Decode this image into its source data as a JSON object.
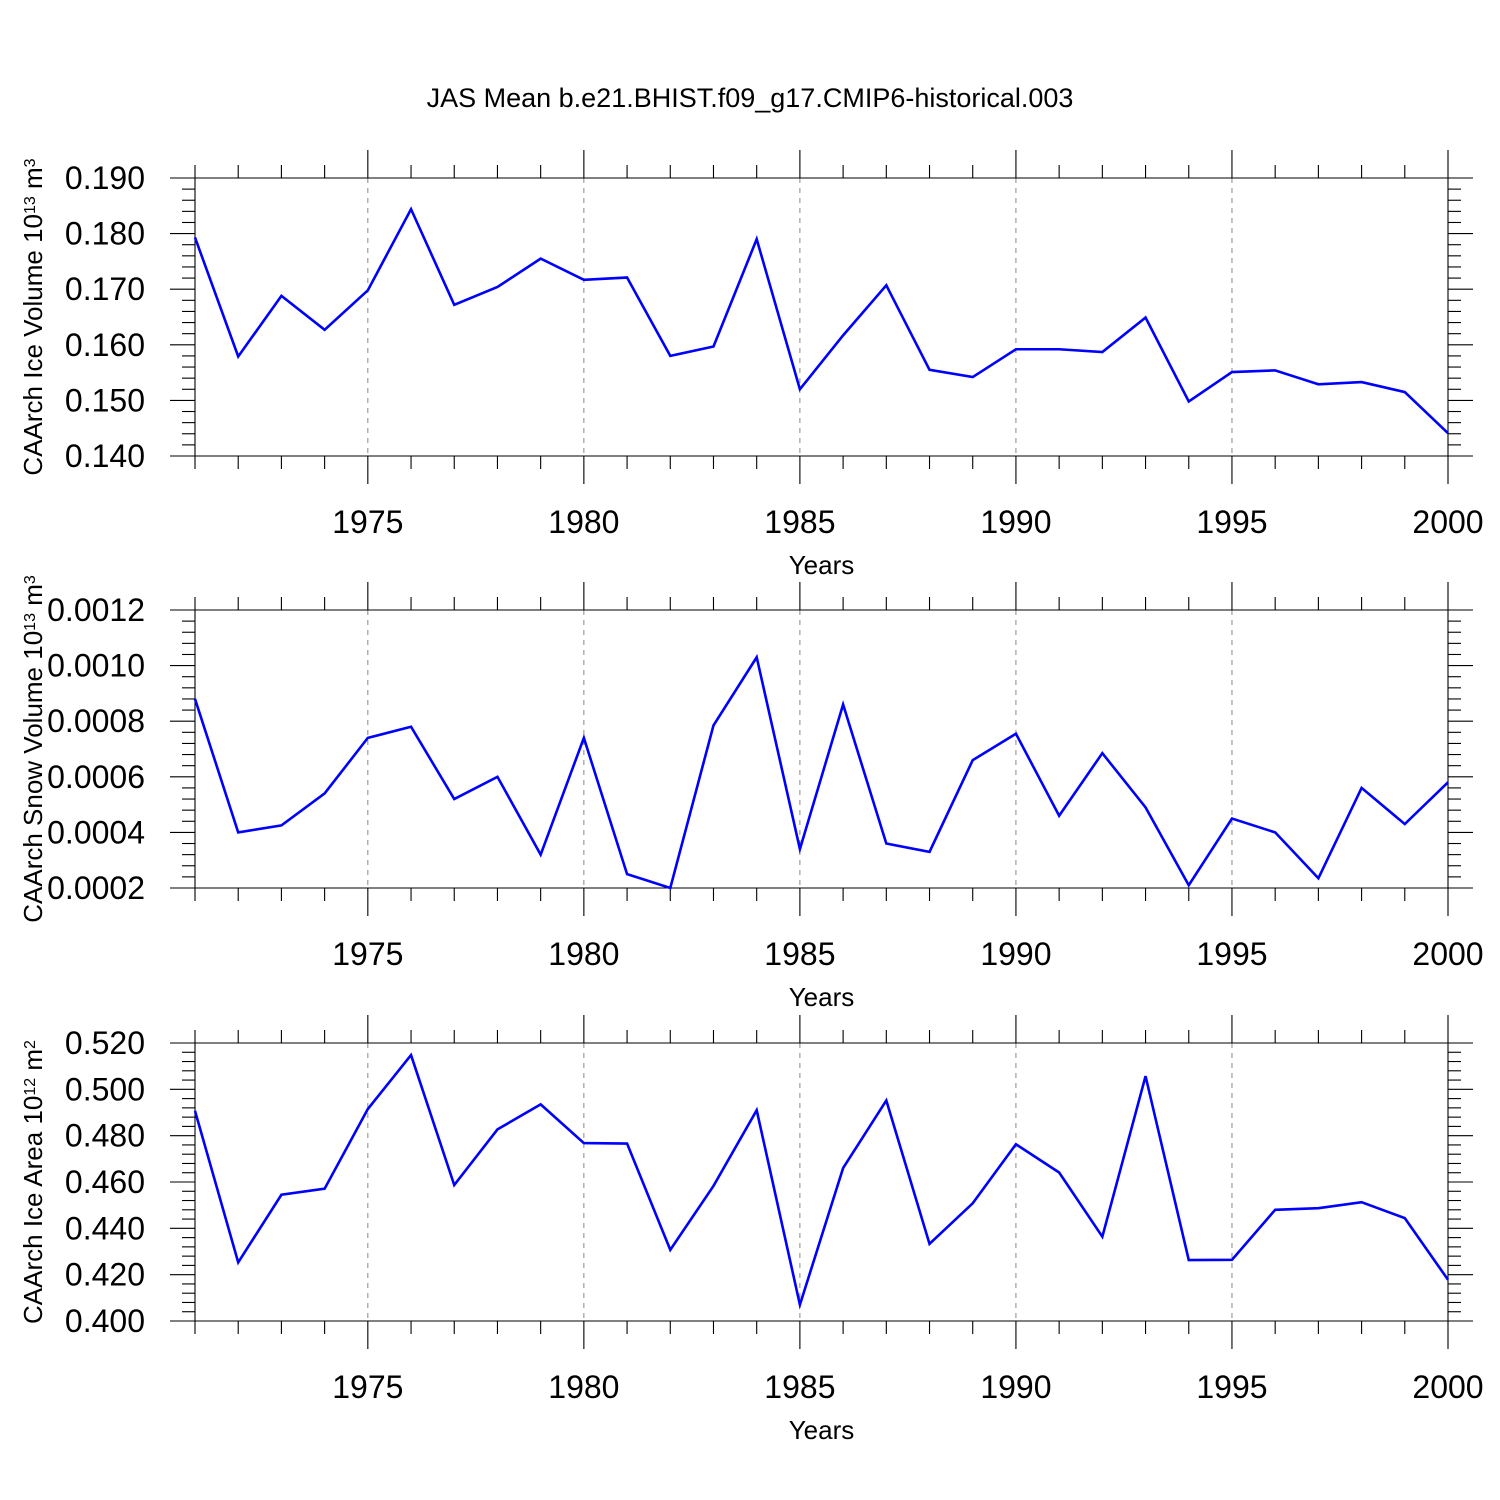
{
  "title": "JAS Mean b.e21.BHIST.f09_g17.CMIP6-historical.003",
  "colors": {
    "series": "#0000ff",
    "grid": "#888888",
    "axes": "#000000"
  },
  "chart_data": [
    {
      "type": "line",
      "ylabel": "CAArch Ice Volume 10",
      "ylabel_exp": "13",
      "ylabel_unit": " m",
      "ylabel_unit_exp": "3",
      "xlabel": "Years",
      "xlim": [
        1971,
        2000
      ],
      "ylim": [
        0.14,
        0.19
      ],
      "yticks": [
        0.14,
        0.15,
        0.16,
        0.17,
        0.18,
        0.19
      ],
      "ytick_labels": [
        "0.140",
        "0.150",
        "0.160",
        "0.170",
        "0.180",
        "0.190"
      ],
      "xticks": [
        1975,
        1980,
        1985,
        1990,
        1995,
        2000
      ],
      "xtick_labels": [
        "1975",
        "1980",
        "1985",
        "1990",
        "1995",
        "2000"
      ],
      "grid": "x dashed",
      "x": [
        1971,
        1972,
        1973,
        1974,
        1975,
        1976,
        1977,
        1978,
        1979,
        1980,
        1981,
        1982,
        1983,
        1984,
        1985,
        1986,
        1987,
        1988,
        1989,
        1990,
        1991,
        1992,
        1993,
        1994,
        1995,
        1996,
        1997,
        1998,
        1999,
        2000
      ],
      "values": [
        0.1793,
        0.1579,
        0.1688,
        0.1627,
        0.1698,
        0.1844,
        0.1672,
        0.1704,
        0.1755,
        0.1717,
        0.1721,
        0.158,
        0.1597,
        0.179,
        0.152,
        0.1617,
        0.1707,
        0.1555,
        0.1542,
        0.1592,
        0.1592,
        0.1587,
        0.1649,
        0.1498,
        0.1551,
        0.1554,
        0.1529,
        0.1533,
        0.1515,
        0.1441
      ]
    },
    {
      "type": "line",
      "ylabel": "CAArch Snow Volume 10",
      "ylabel_exp": "13",
      "ylabel_unit": " m",
      "ylabel_unit_exp": "3",
      "xlabel": "Years",
      "xlim": [
        1971,
        2000
      ],
      "ylim": [
        0.0002,
        0.0012
      ],
      "yticks": [
        0.0002,
        0.0004,
        0.0006,
        0.0008,
        0.001,
        0.0012
      ],
      "ytick_labels": [
        "0.0002",
        "0.0004",
        "0.0006",
        "0.0008",
        "0.0010",
        "0.0012"
      ],
      "xticks": [
        1975,
        1980,
        1985,
        1990,
        1995,
        2000
      ],
      "xtick_labels": [
        "1975",
        "1980",
        "1985",
        "1990",
        "1995",
        "2000"
      ],
      "grid": "x dashed",
      "x": [
        1971,
        1972,
        1973,
        1974,
        1975,
        1976,
        1977,
        1978,
        1979,
        1980,
        1981,
        1982,
        1983,
        1984,
        1985,
        1986,
        1987,
        1988,
        1989,
        1990,
        1991,
        1992,
        1993,
        1994,
        1995,
        1996,
        1997,
        1998,
        1999,
        2000
      ],
      "values": [
        0.00088,
        0.0004,
        0.000425,
        0.00054,
        0.00074,
        0.00078,
        0.00052,
        0.0006,
        0.00032,
        0.00074,
        0.00025,
        0.0002,
        0.000785,
        0.00103,
        0.00034,
        0.00086,
        0.00036,
        0.00033,
        0.00066,
        0.000755,
        0.00046,
        0.000685,
        0.00049,
        0.00021,
        0.00045,
        0.0004,
        0.000235,
        0.00056,
        0.00043,
        0.00058
      ]
    },
    {
      "type": "line",
      "ylabel": "CAArch Ice Area 10",
      "ylabel_exp": "12",
      "ylabel_unit": " m",
      "ylabel_unit_exp": "2",
      "xlabel": "Years",
      "xlim": [
        1971,
        2000
      ],
      "ylim": [
        0.4,
        0.52
      ],
      "yticks": [
        0.4,
        0.42,
        0.44,
        0.46,
        0.48,
        0.5,
        0.52
      ],
      "ytick_labels": [
        "0.400",
        "0.420",
        "0.440",
        "0.460",
        "0.480",
        "0.500",
        "0.520"
      ],
      "xticks": [
        1975,
        1980,
        1985,
        1990,
        1995,
        2000
      ],
      "xtick_labels": [
        "1975",
        "1980",
        "1985",
        "1990",
        "1995",
        "2000"
      ],
      "grid": "x dashed",
      "x": [
        1971,
        1972,
        1973,
        1974,
        1975,
        1976,
        1977,
        1978,
        1979,
        1980,
        1981,
        1982,
        1983,
        1984,
        1985,
        1986,
        1987,
        1988,
        1989,
        1990,
        1991,
        1992,
        1993,
        1994,
        1995,
        1996,
        1997,
        1998,
        1999,
        2000
      ],
      "values": [
        0.4907,
        0.4253,
        0.4545,
        0.4571,
        0.4915,
        0.5148,
        0.4587,
        0.4827,
        0.4935,
        0.4768,
        0.4766,
        0.4307,
        0.4583,
        0.491,
        0.407,
        0.466,
        0.4952,
        0.4333,
        0.4508,
        0.4763,
        0.4641,
        0.4364,
        0.5057,
        0.4263,
        0.4264,
        0.448,
        0.4487,
        0.4513,
        0.4444,
        0.4178
      ]
    }
  ]
}
